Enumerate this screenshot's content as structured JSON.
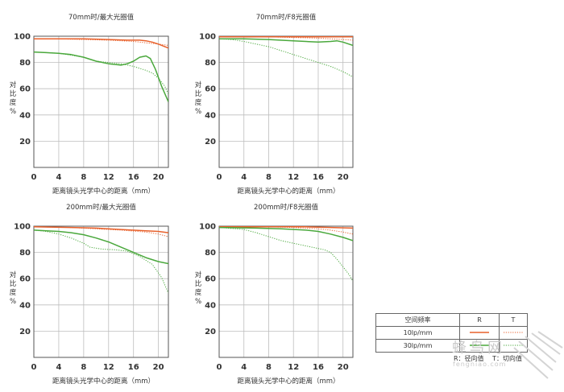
{
  "chart_data": [
    {
      "type": "line",
      "title": "70mm时/最大光圈值",
      "xlabel": "距离镜头光学中心的距离（mm）",
      "ylabel": "对比度%",
      "xlim": [
        0,
        21.6
      ],
      "ylim": [
        0,
        100
      ],
      "xticks": [
        0,
        4,
        8,
        12,
        16,
        20
      ],
      "yticks": [
        20,
        40,
        60,
        80,
        100
      ],
      "grid": true,
      "series": [
        {
          "key": "10-R",
          "color": "#e8612c",
          "style": "solid",
          "points": [
            [
              0,
              98
            ],
            [
              4,
              98
            ],
            [
              8,
              98
            ],
            [
              12,
              97.5
            ],
            [
              15,
              97
            ],
            [
              17,
              97
            ],
            [
              18,
              96.5
            ],
            [
              19,
              95.5
            ],
            [
              20,
              94
            ],
            [
              21.6,
              91
            ]
          ]
        },
        {
          "key": "10-T",
          "color": "#e8612c",
          "style": "dotted",
          "points": [
            [
              0,
              98
            ],
            [
              4,
              98
            ],
            [
              8,
              97.5
            ],
            [
              12,
              97
            ],
            [
              16,
              96
            ],
            [
              18,
              95
            ],
            [
              20,
              94
            ],
            [
              21.6,
              93
            ]
          ]
        },
        {
          "key": "30-R",
          "color": "#4aa83c",
          "style": "solid",
          "points": [
            [
              0,
              88
            ],
            [
              2,
              87.5
            ],
            [
              4,
              87
            ],
            [
              6,
              86
            ],
            [
              8,
              84
            ],
            [
              10,
              81
            ],
            [
              12,
              79
            ],
            [
              14,
              78
            ],
            [
              15,
              79
            ],
            [
              16,
              81
            ],
            [
              17,
              84
            ],
            [
              18,
              85
            ],
            [
              18.7,
              83
            ],
            [
              19.5,
              75
            ],
            [
              20.5,
              62
            ],
            [
              21.6,
              50
            ]
          ]
        },
        {
          "key": "30-T",
          "color": "#4aa83c",
          "style": "dotted",
          "points": [
            [
              0,
              88
            ],
            [
              4,
              87
            ],
            [
              8,
              84
            ],
            [
              10,
              81
            ],
            [
              12,
              80
            ],
            [
              14,
              79
            ],
            [
              16,
              77
            ],
            [
              18,
              74
            ],
            [
              19,
              72
            ],
            [
              20,
              68
            ],
            [
              21,
              62
            ],
            [
              21.6,
              56
            ]
          ]
        }
      ]
    },
    {
      "type": "line",
      "title": "70mm时/F8光圈值",
      "xlabel": "距离镜头光学中心的距离（mm）",
      "ylabel": "对比度%",
      "xlim": [
        0,
        21.6
      ],
      "ylim": [
        0,
        100
      ],
      "xticks": [
        0,
        4,
        8,
        12,
        16,
        20
      ],
      "yticks": [
        20,
        40,
        60,
        80,
        100
      ],
      "grid": true,
      "series": [
        {
          "key": "10-R",
          "color": "#e8612c",
          "style": "solid",
          "points": [
            [
              0,
              99.5
            ],
            [
              8,
              99.5
            ],
            [
              16,
              99.5
            ],
            [
              21.6,
              99.5
            ]
          ]
        },
        {
          "key": "10-T",
          "color": "#e8612c",
          "style": "dotted",
          "points": [
            [
              0,
              99.5
            ],
            [
              8,
              99.5
            ],
            [
              12,
              99
            ],
            [
              16,
              98.5
            ],
            [
              20,
              97.5
            ],
            [
              21.6,
              97
            ]
          ]
        },
        {
          "key": "30-R",
          "color": "#4aa83c",
          "style": "solid",
          "points": [
            [
              0,
              98
            ],
            [
              4,
              98
            ],
            [
              8,
              97.5
            ],
            [
              12,
              96.5
            ],
            [
              14,
              96
            ],
            [
              16,
              95.5
            ],
            [
              18,
              96
            ],
            [
              19,
              96.5
            ],
            [
              20,
              95.5
            ],
            [
              21.6,
              93
            ]
          ]
        },
        {
          "key": "30-T",
          "color": "#4aa83c",
          "style": "dotted",
          "points": [
            [
              0,
              98
            ],
            [
              2,
              97.5
            ],
            [
              4,
              96
            ],
            [
              6,
              94
            ],
            [
              8,
              92
            ],
            [
              10,
              89
            ],
            [
              12,
              86
            ],
            [
              14,
              83
            ],
            [
              16,
              80
            ],
            [
              18,
              77
            ],
            [
              20,
              73
            ],
            [
              21.6,
              69
            ]
          ]
        }
      ]
    },
    {
      "type": "line",
      "title": "200mm时/最大光圈值",
      "xlabel": "距离镜头光学中心的距离（mm）",
      "ylabel": "对比度%",
      "xlim": [
        0,
        21.6
      ],
      "ylim": [
        0,
        100
      ],
      "xticks": [
        0,
        4,
        8,
        12,
        16,
        20
      ],
      "yticks": [
        20,
        40,
        60,
        80,
        100
      ],
      "grid": true,
      "series": [
        {
          "key": "10-R",
          "color": "#e8612c",
          "style": "solid",
          "points": [
            [
              0,
              99.5
            ],
            [
              6,
              99
            ],
            [
              10,
              98.5
            ],
            [
              14,
              97.5
            ],
            [
              18,
              96.5
            ],
            [
              20,
              96
            ],
            [
              21.6,
              95
            ]
          ]
        },
        {
          "key": "10-T",
          "color": "#e8612c",
          "style": "dotted",
          "points": [
            [
              0,
              99.5
            ],
            [
              6,
              99
            ],
            [
              10,
              98
            ],
            [
              14,
              97
            ],
            [
              18,
              95.5
            ],
            [
              20,
              94
            ],
            [
              21.6,
              92
            ]
          ]
        },
        {
          "key": "30-R",
          "color": "#4aa83c",
          "style": "solid",
          "points": [
            [
              0,
              97
            ],
            [
              2,
              96.5
            ],
            [
              4,
              96
            ],
            [
              6,
              95
            ],
            [
              8,
              93.5
            ],
            [
              10,
              91
            ],
            [
              12,
              88
            ],
            [
              14,
              84
            ],
            [
              16,
              80
            ],
            [
              18,
              76
            ],
            [
              20,
              73
            ],
            [
              21.6,
              71.5
            ]
          ]
        },
        {
          "key": "30-T",
          "color": "#4aa83c",
          "style": "dotted",
          "points": [
            [
              0,
              97
            ],
            [
              2,
              96
            ],
            [
              4,
              94
            ],
            [
              6,
              91
            ],
            [
              8,
              87
            ],
            [
              9,
              84
            ],
            [
              11,
              82.5
            ],
            [
              13,
              82
            ],
            [
              15,
              81
            ],
            [
              17,
              77
            ],
            [
              19,
              71
            ],
            [
              20.5,
              61
            ],
            [
              21.6,
              49
            ]
          ]
        }
      ]
    },
    {
      "type": "line",
      "title": "200mm时/F8光圈值",
      "xlabel": "距离镜头光学中心的距离（mm）",
      "ylabel": "对比度%",
      "xlim": [
        0,
        21.6
      ],
      "ylim": [
        0,
        100
      ],
      "xticks": [
        0,
        4,
        8,
        12,
        16,
        20
      ],
      "yticks": [
        20,
        40,
        60,
        80,
        100
      ],
      "grid": true,
      "series": [
        {
          "key": "10-R",
          "color": "#e8612c",
          "style": "solid",
          "points": [
            [
              0,
              99.5
            ],
            [
              8,
              99.5
            ],
            [
              14,
              99.5
            ],
            [
              18,
              99
            ],
            [
              21.6,
              98.5
            ]
          ]
        },
        {
          "key": "10-T",
          "color": "#e8612c",
          "style": "dotted",
          "points": [
            [
              0,
              99.5
            ],
            [
              8,
              99.5
            ],
            [
              12,
              99
            ],
            [
              16,
              98
            ],
            [
              18,
              97
            ],
            [
              20,
              95.5
            ],
            [
              21.6,
              94
            ]
          ]
        },
        {
          "key": "30-R",
          "color": "#4aa83c",
          "style": "solid",
          "points": [
            [
              0,
              99
            ],
            [
              6,
              98.5
            ],
            [
              10,
              98
            ],
            [
              14,
              97
            ],
            [
              16,
              96
            ],
            [
              18,
              94
            ],
            [
              20,
              91.5
            ],
            [
              21.6,
              89
            ]
          ]
        },
        {
          "key": "30-T",
          "color": "#4aa83c",
          "style": "dotted",
          "points": [
            [
              0,
              99
            ],
            [
              4,
              97.5
            ],
            [
              6,
              95
            ],
            [
              8,
              92
            ],
            [
              10,
              89
            ],
            [
              12,
              87
            ],
            [
              14,
              85
            ],
            [
              16,
              83
            ],
            [
              17,
              82
            ],
            [
              18,
              80
            ],
            [
              19,
              75
            ],
            [
              20,
              69
            ],
            [
              21,
              63
            ],
            [
              21.6,
              58
            ]
          ]
        }
      ]
    }
  ],
  "legend": {
    "header": [
      "空间频率",
      "R",
      "T"
    ],
    "rows": [
      {
        "label": "10lp/mm",
        "color": "#e8612c"
      },
      {
        "label": "30lp/mm",
        "color": "#4aa83c"
      }
    ],
    "note_r": "R：径向值",
    "note_t": "T：切向值"
  },
  "watermark": {
    "text": "蜂鸟网",
    "sub": "fengniao.com"
  }
}
